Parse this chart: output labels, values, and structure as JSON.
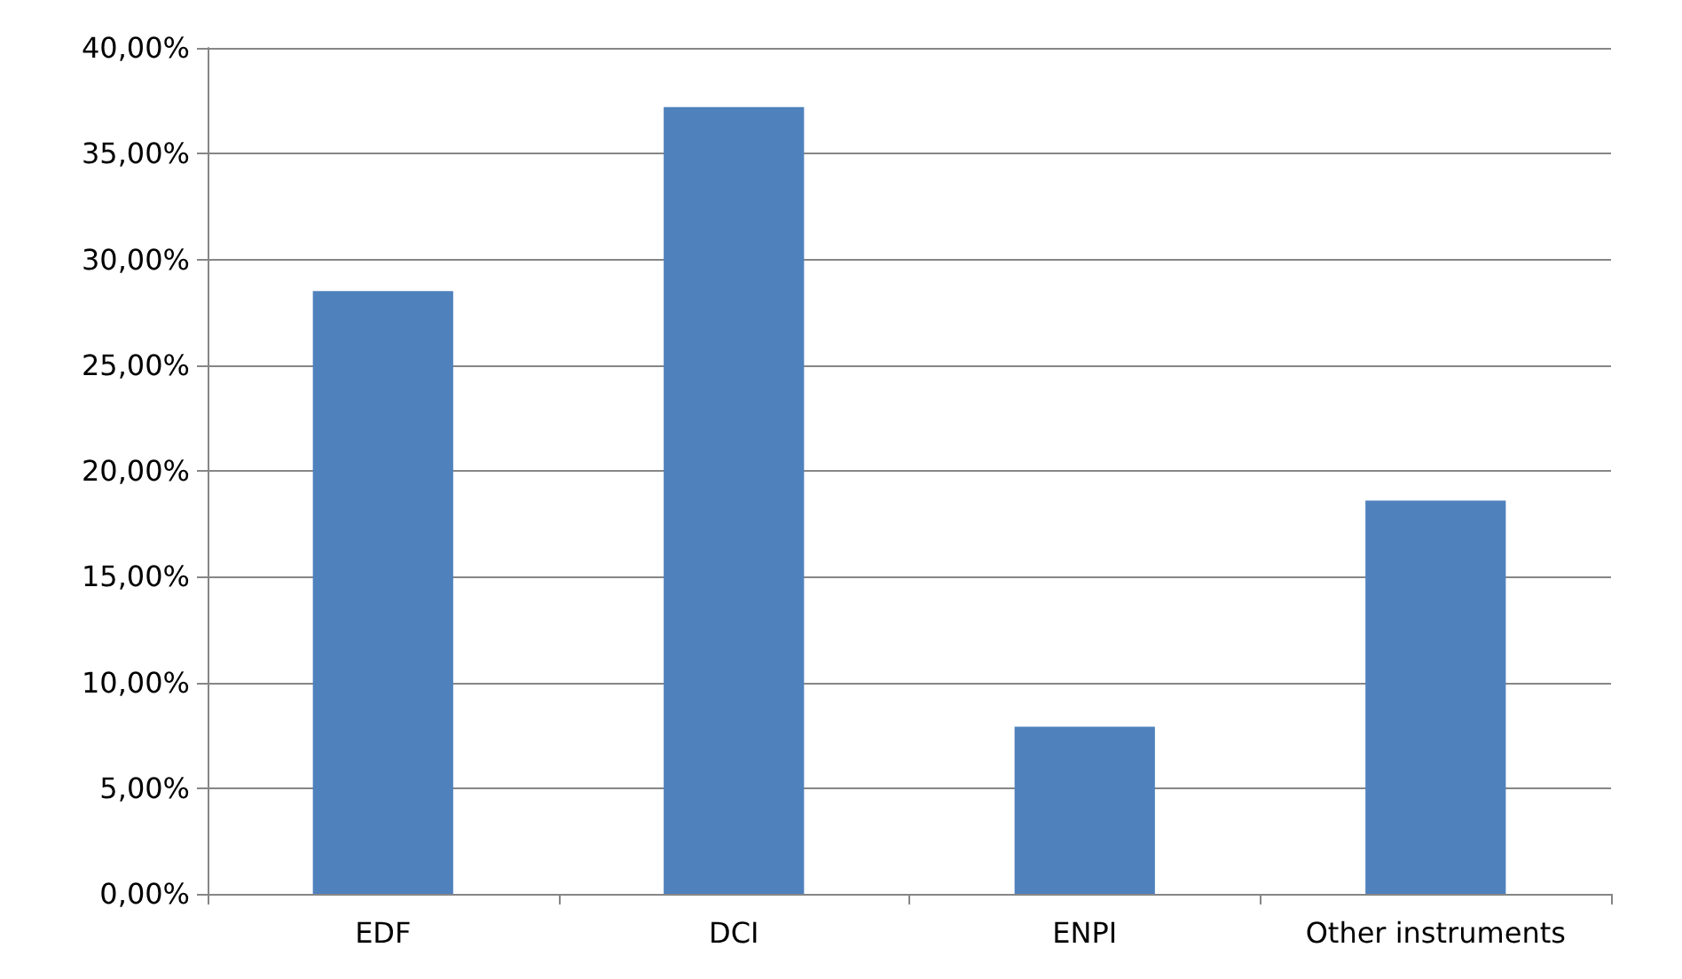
{
  "chart_data": {
    "type": "bar",
    "categories": [
      "EDF",
      "DCI",
      "ENPI",
      "Other instruments"
    ],
    "values": [
      28.5,
      37.2,
      7.9,
      18.6
    ],
    "color": "#4f81bd",
    "ylim": [
      0,
      40
    ],
    "yticks": [
      {
        "value": 0,
        "label": "0,00%"
      },
      {
        "value": 5,
        "label": "5,00%"
      },
      {
        "value": 10,
        "label": "10,00%"
      },
      {
        "value": 15,
        "label": "15,00%"
      },
      {
        "value": 20,
        "label": "20,00%"
      },
      {
        "value": 25,
        "label": "25,00%"
      },
      {
        "value": 30,
        "label": "30,00%"
      },
      {
        "value": 35,
        "label": "35,00%"
      },
      {
        "value": 40,
        "label": "40,00%"
      }
    ],
    "grid": "y"
  }
}
